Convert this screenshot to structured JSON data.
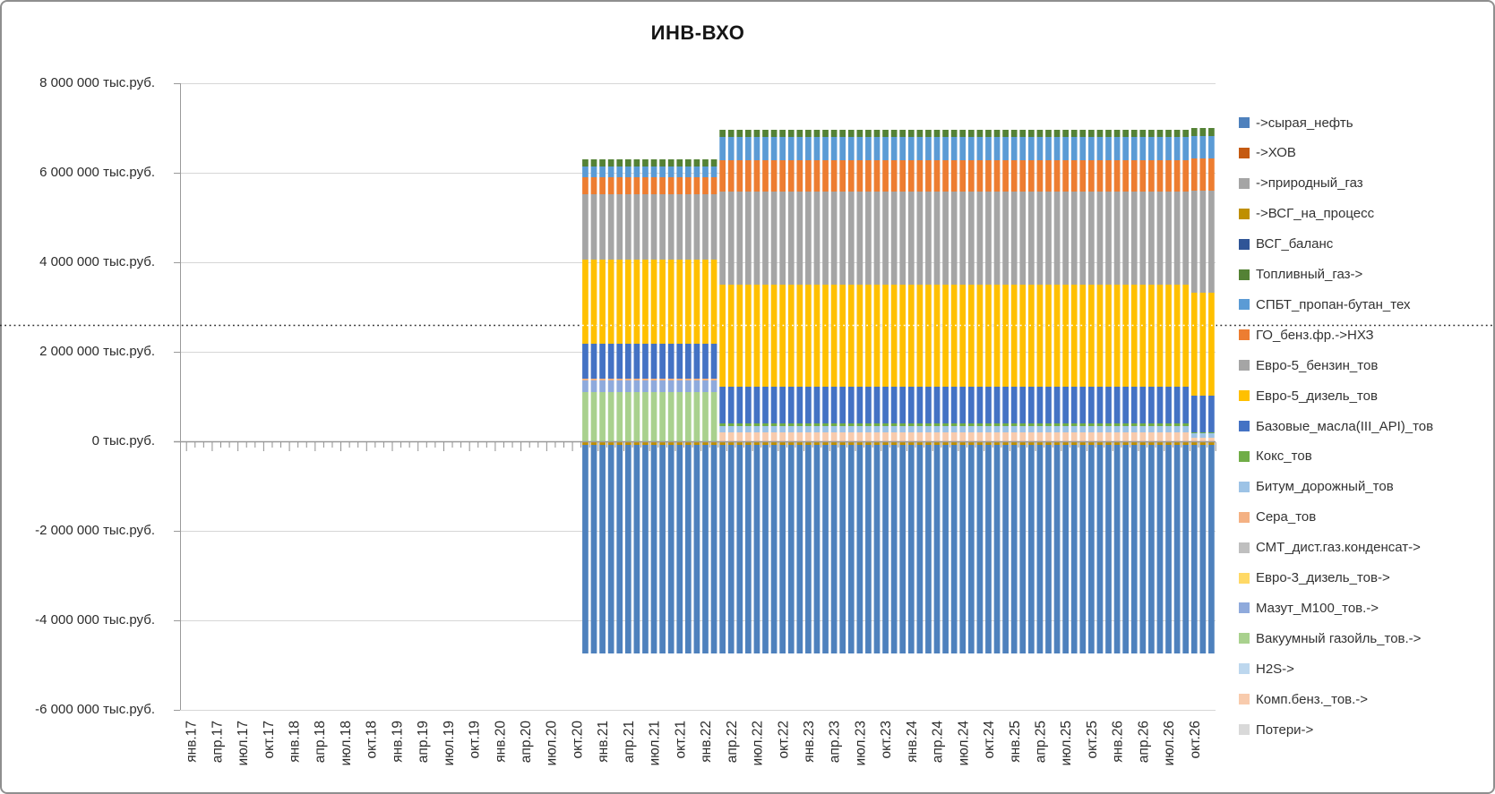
{
  "chart_data": {
    "type": "bar",
    "stacked": true,
    "title": "ИНВ-ВХО",
    "unit": "тыс.руб.",
    "ylim": [
      -6000000,
      8000000
    ],
    "y_tick_step": 2000000,
    "y_tick_labels": [
      "8 000 000 тыс.руб.",
      "6 000 000 тыс.руб.",
      "4 000 000 тыс.руб.",
      "2 000 000 тыс.руб.",
      "0 тыс.руб.",
      "-2 000 000 тыс.руб.",
      "-4 000 000 тыс.руб.",
      "-6 000 000 тыс.руб."
    ],
    "x_tick_labels": [
      "янв.17",
      "апр.17",
      "июл.17",
      "окт.17",
      "янв.18",
      "апр.18",
      "июл.18",
      "окт.18",
      "янв.19",
      "апр.19",
      "июл.19",
      "окт.19",
      "янв.20",
      "апр.20",
      "июл.20",
      "окт.20",
      "янв.21",
      "апр.21",
      "июл.21",
      "окт.21",
      "янв.22",
      "апр.22",
      "июл.22",
      "окт.22",
      "янв.23",
      "апр.23",
      "июл.23",
      "окт.23",
      "янв.24",
      "апр.24",
      "июл.24",
      "окт.24",
      "янв.25",
      "апр.25",
      "июл.25",
      "окт.25",
      "янв.26",
      "апр.26",
      "июл.26",
      "окт.26"
    ],
    "x_months_total": 120,
    "months_per_tick_label": 3,
    "reference_line": {
      "value": 2600000,
      "style": "dotted"
    },
    "grid": true,
    "legend_position": "right",
    "series": [
      {
        "name": "->сырая_нефть",
        "color": "#4E81BD"
      },
      {
        "name": "->ХОВ",
        "color": "#C55A11"
      },
      {
        "name": "->природный_газ",
        "color": "#A5A5A5"
      },
      {
        "name": "->ВСГ_на_процесс",
        "color": "#BF8F00"
      },
      {
        "name": "ВСГ_баланс",
        "color": "#2F5597"
      },
      {
        "name": "Топливный_газ->",
        "color": "#548235"
      },
      {
        "name": "СПБТ_пропан-бутан_тех",
        "color": "#5B9BD5"
      },
      {
        "name": "ГО_бенз.фр.->НХЗ",
        "color": "#ED7D31"
      },
      {
        "name": "Евро-5_бензин_тов",
        "color": "#A5A5A5"
      },
      {
        "name": "Евро-5_дизель_тов",
        "color": "#FFC000"
      },
      {
        "name": "Базовые_масла(III_API)_тов",
        "color": "#4472C4"
      },
      {
        "name": "Кокс_тов",
        "color": "#70AD47"
      },
      {
        "name": "Битум_дорожный_тов",
        "color": "#9DC3E6"
      },
      {
        "name": "Сера_тов",
        "color": "#F4B183"
      },
      {
        "name": "СМТ_дист.газ.конденсат->",
        "color": "#BFBFBF"
      },
      {
        "name": "Евро-3_дизель_тов->",
        "color": "#FFD966"
      },
      {
        "name": "Мазут_М100_тов.->",
        "color": "#8FAADC"
      },
      {
        "name": "Вакуумный газойль_тов.->",
        "color": "#A9D18E"
      },
      {
        "name": "H2S->",
        "color": "#BDD7EE"
      },
      {
        "name": "Комп.бенз._тов.->",
        "color": "#F8CBAD"
      },
      {
        "name": "Потери->",
        "color": "#D9D9D9"
      }
    ],
    "periods": [
      {
        "label": "ноя.20–фев.22",
        "start_month_index": 46,
        "end_month_index": 61,
        "positive_stack_bottom_to_top": [
          {
            "name": "Вакуумный газойль_тов.->",
            "value": 1100000
          },
          {
            "name": "Мазут_М100_тов.->",
            "value": 260000
          },
          {
            "name": "Сера_тов",
            "value": 40000
          },
          {
            "name": "Базовые_масла(III_API)_тов",
            "value": 780000
          },
          {
            "name": "Евро-5_дизель_тов",
            "value": 1880000
          },
          {
            "name": "Евро-5_бензин_тов",
            "value": 1460000
          },
          {
            "name": "ГО_бенз.фр.->НХЗ",
            "value": 380000
          },
          {
            "name": "СПБТ_пропан-бутан_тех",
            "value": 240000
          },
          {
            "name": "Топливный_газ->",
            "value": 160000
          }
        ],
        "negative_stack_top_to_bottom": [
          {
            "name": "->ВСГ_на_процесс",
            "value": -80000
          },
          {
            "name": "->сырая_нефть",
            "value": -4660000
          }
        ]
      },
      {
        "label": "мар.22–сен.26",
        "start_month_index": 62,
        "end_month_index": 116,
        "positive_stack_bottom_to_top": [
          {
            "name": "Комп.бенз._тов.->",
            "value": 200000
          },
          {
            "name": "Битум_дорожный_тов",
            "value": 140000
          },
          {
            "name": "Кокс_тов",
            "value": 60000
          },
          {
            "name": "Базовые_масла(III_API)_тов",
            "value": 820000
          },
          {
            "name": "Евро-5_дизель_тов",
            "value": 2280000
          },
          {
            "name": "Евро-5_бензин_тов",
            "value": 2080000
          },
          {
            "name": "ГО_бенз.фр.->НХЗ",
            "value": 700000
          },
          {
            "name": "СПБТ_пропан-бутан_тех",
            "value": 520000
          },
          {
            "name": "Топливный_газ->",
            "value": 160000
          }
        ],
        "negative_stack_top_to_bottom": [
          {
            "name": "->ВСГ_на_процесс",
            "value": -80000
          },
          {
            "name": "->сырая_нефть",
            "value": -4660000
          }
        ]
      },
      {
        "label": "окт.26–дек.26",
        "start_month_index": 117,
        "end_month_index": 119,
        "positive_stack_bottom_to_top": [
          {
            "name": "Комп.бенз._тов.->",
            "value": 80000
          },
          {
            "name": "Битум_дорожный_тов",
            "value": 100000
          },
          {
            "name": "Кокс_тов",
            "value": 20000
          },
          {
            "name": "Базовые_масла(III_API)_тов",
            "value": 820000
          },
          {
            "name": "Евро-5_дизель_тов",
            "value": 2300000
          },
          {
            "name": "Евро-5_бензин_тов",
            "value": 2280000
          },
          {
            "name": "ГО_бенз.фр.->НХЗ",
            "value": 720000
          },
          {
            "name": "СПБТ_пропан-бутан_тех",
            "value": 500000
          },
          {
            "name": "Топливный_газ->",
            "value": 180000
          }
        ],
        "negative_stack_top_to_bottom": [
          {
            "name": "->ВСГ_на_процесс",
            "value": -80000
          },
          {
            "name": "->сырая_нефть",
            "value": -4660000
          }
        ]
      }
    ]
  }
}
